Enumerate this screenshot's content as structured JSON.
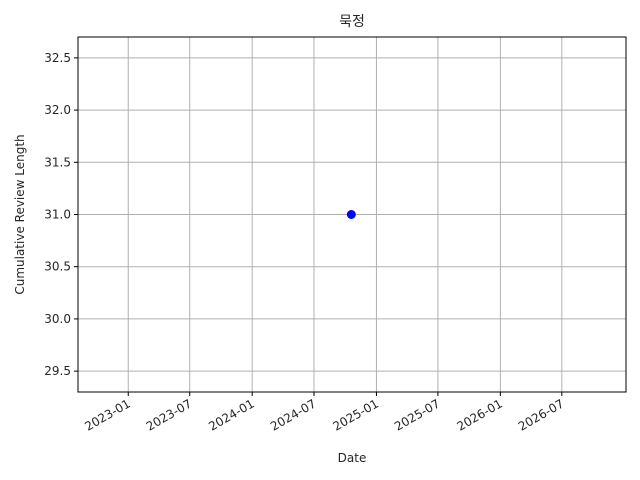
{
  "chart_data": {
    "type": "scatter",
    "title": "묵정",
    "xlabel": "Date",
    "ylabel": "Cumulative Review Length",
    "x_ticks": [
      "2023-01",
      "2023-07",
      "2024-01",
      "2024-07",
      "2025-01",
      "2025-07",
      "2026-01",
      "2026-07"
    ],
    "y_ticks": [
      "29.5",
      "30.0",
      "30.5",
      "31.0",
      "31.5",
      "32.0",
      "32.5"
    ],
    "xlim": [
      "2022-08-06",
      "2027-01-06"
    ],
    "ylim": [
      29.3,
      32.7
    ],
    "grid": true,
    "marker_color": "#0000ff",
    "points": [
      {
        "x": "2024-10-19",
        "y": 31.0
      }
    ]
  }
}
